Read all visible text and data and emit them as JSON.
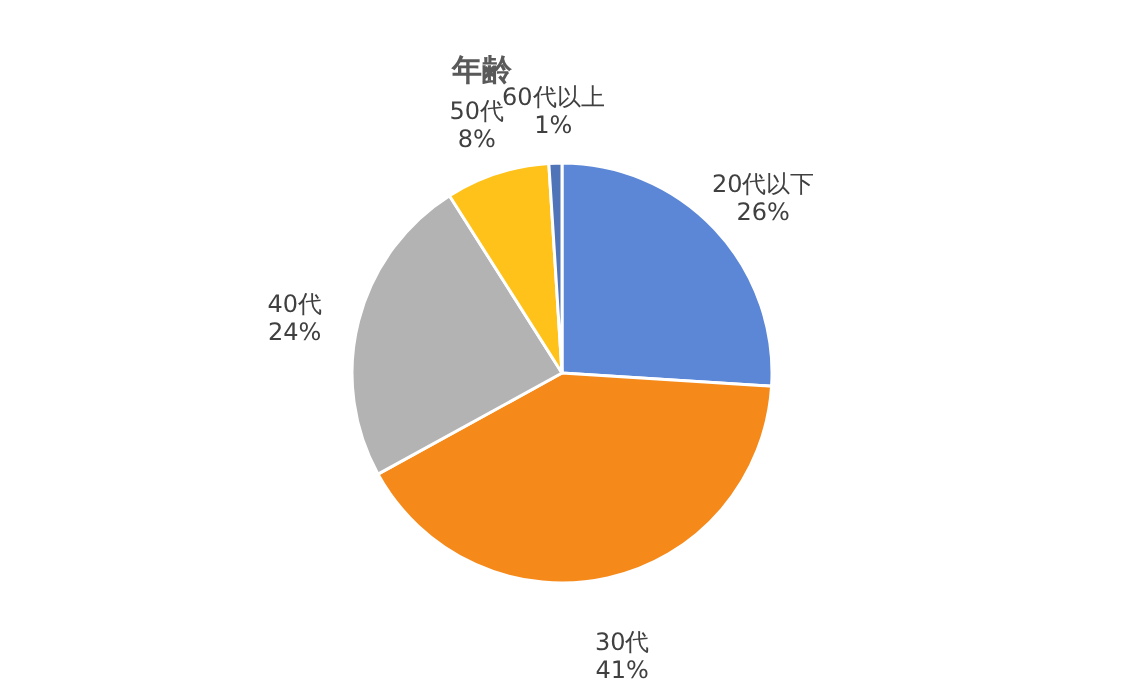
{
  "chart_data": {
    "type": "pie",
    "title": "年齢",
    "categories": [
      "20代以下",
      "30代",
      "40代",
      "50代",
      "60代以上"
    ],
    "values": [
      26,
      41,
      24,
      8,
      1
    ],
    "value_labels": [
      "26%",
      "41%",
      "24%",
      "8%",
      "1%"
    ],
    "colors": [
      "#5b87d6",
      "#f58a1b",
      "#b3b3b3",
      "#ffc21a",
      "#4f74b8"
    ],
    "legend": false
  }
}
